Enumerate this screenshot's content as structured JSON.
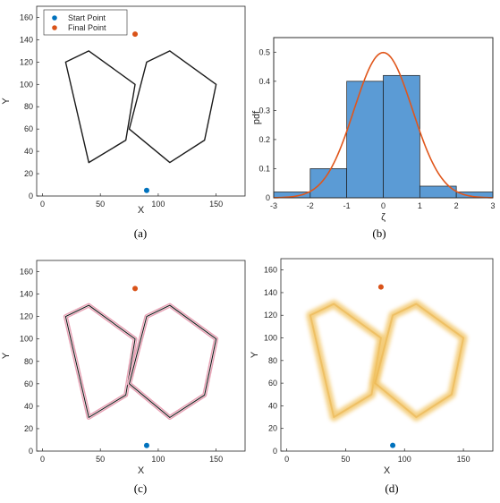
{
  "colors": {
    "start_point": "#0072BD",
    "final_point": "#D95319",
    "hist_fill": "#5B9BD5",
    "pdf_curve": "#E0561B",
    "outline_pink": "#E8A0B4",
    "blur_gold": "#F2C464"
  },
  "chart_data": [
    {
      "type": "scatter",
      "panel_label": "(a)",
      "xlabel": "X",
      "ylabel": "Y",
      "xlim": [
        -5,
        175
      ],
      "ylim": [
        0,
        170
      ],
      "xticks": [
        0,
        50,
        100,
        150
      ],
      "yticks": [
        0,
        20,
        40,
        60,
        80,
        100,
        120,
        140,
        160
      ],
      "legend": {
        "placement": "top-left",
        "entries": [
          "Start Point",
          "Final Point"
        ]
      },
      "points": {
        "start": {
          "x": 90,
          "y": 5
        },
        "final": {
          "x": 80,
          "y": 145
        }
      },
      "obstacles": [
        [
          [
            20,
            120
          ],
          [
            40,
            130
          ],
          [
            80,
            100
          ],
          [
            72,
            50
          ],
          [
            40,
            30
          ]
        ],
        [
          [
            90,
            120
          ],
          [
            110,
            130
          ],
          [
            150,
            100
          ],
          [
            140,
            50
          ],
          [
            110,
            30
          ],
          [
            75,
            60
          ]
        ]
      ]
    },
    {
      "type": "bar",
      "panel_label": "(b)",
      "xlabel": "ζ",
      "ylabel": "pdf",
      "xlim": [
        -3,
        3
      ],
      "ylim": [
        0,
        0.55
      ],
      "xticks": [
        -3,
        -2,
        -1,
        0,
        1,
        2,
        3
      ],
      "yticks": [
        0,
        0.1,
        0.2,
        0.3,
        0.4,
        0.5
      ],
      "bin_edges": [
        -3,
        -2,
        -1,
        0,
        1,
        2,
        3
      ],
      "values": [
        0.02,
        0.1,
        0.4,
        0.42,
        0.04,
        0.02
      ],
      "curve": {
        "kind": "normal_pdf",
        "mean": 0,
        "std": 0.8
      }
    },
    {
      "type": "scatter",
      "panel_label": "(c)",
      "xlabel": "X",
      "ylabel": "Y",
      "xlim": [
        -5,
        175
      ],
      "ylim": [
        0,
        170
      ],
      "xticks": [
        0,
        50,
        100,
        150
      ],
      "yticks": [
        0,
        20,
        40,
        60,
        80,
        100,
        120,
        140,
        160
      ],
      "points": {
        "start": {
          "x": 90,
          "y": 5
        },
        "final": {
          "x": 80,
          "y": 145
        }
      },
      "obstacles": [
        [
          [
            20,
            120
          ],
          [
            40,
            130
          ],
          [
            80,
            100
          ],
          [
            72,
            50
          ],
          [
            40,
            30
          ]
        ],
        [
          [
            90,
            120
          ],
          [
            110,
            130
          ],
          [
            150,
            100
          ],
          [
            140,
            50
          ],
          [
            110,
            30
          ],
          [
            75,
            60
          ]
        ]
      ]
    },
    {
      "type": "scatter",
      "panel_label": "(d)",
      "xlabel": "X",
      "ylabel": "Y",
      "xlim": [
        -5,
        175
      ],
      "ylim": [
        0,
        170
      ],
      "xticks": [
        0,
        50,
        100,
        150
      ],
      "yticks": [
        0,
        20,
        40,
        60,
        80,
        100,
        120,
        140,
        160
      ],
      "points": {
        "start": {
          "x": 90,
          "y": 5
        },
        "final": {
          "x": 80,
          "y": 145
        }
      },
      "obstacles": [
        [
          [
            20,
            120
          ],
          [
            40,
            130
          ],
          [
            80,
            100
          ],
          [
            72,
            50
          ],
          [
            40,
            30
          ]
        ],
        [
          [
            90,
            120
          ],
          [
            110,
            130
          ],
          [
            150,
            100
          ],
          [
            140,
            50
          ],
          [
            110,
            30
          ],
          [
            75,
            60
          ]
        ]
      ]
    }
  ]
}
